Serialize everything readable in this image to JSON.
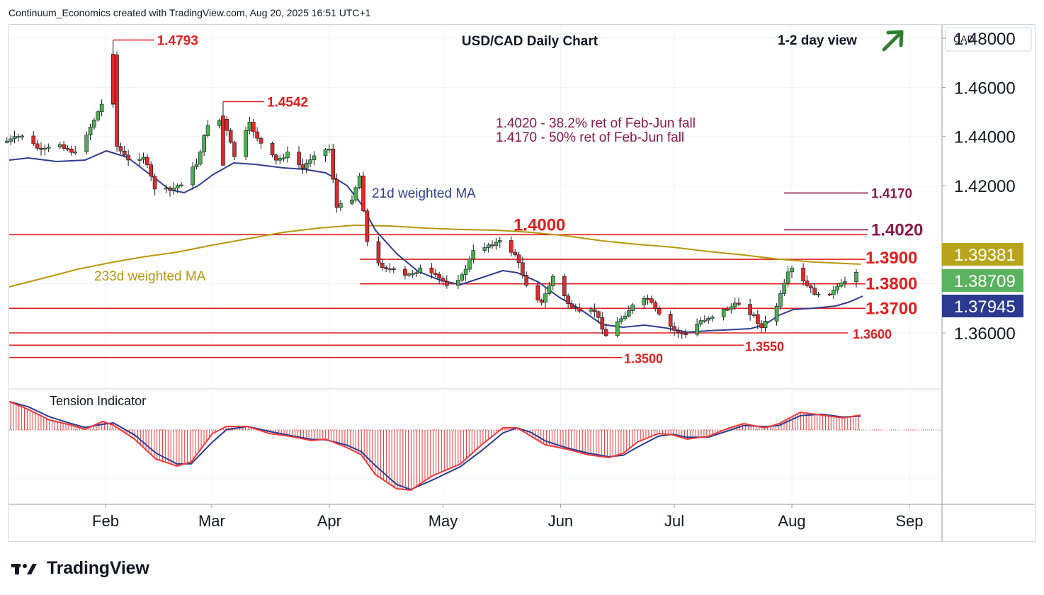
{
  "attribution": "Continuum_Economics created with TradingView.com, Aug 20, 2025 16:51 UTC+1",
  "brand": {
    "name": "TradingView",
    "icon": "tradingview-logo-icon"
  },
  "chart_data": {
    "type": "candlestick",
    "title": "USD/CAD Daily Chart",
    "view_label": "1-2 day view",
    "view_direction": "up",
    "view_icon": "arrow-up-right-icon",
    "currency_label": "CAD",
    "y_range": [
      1.3375,
      1.4855
    ],
    "y_ticks": [
      "1.48000",
      "1.46000",
      "1.44000",
      "1.42000",
      "1.36000"
    ],
    "x_ticks": [
      {
        "label": "Feb",
        "date": "2025-02-01"
      },
      {
        "label": "Mar",
        "date": "2025-03-01"
      },
      {
        "label": "Apr",
        "date": "2025-04-01"
      },
      {
        "label": "May",
        "date": "2025-05-01"
      },
      {
        "label": "Jun",
        "date": "2025-06-01"
      },
      {
        "label": "Jul",
        "date": "2025-07-01"
      },
      {
        "label": "Aug",
        "date": "2025-08-01"
      },
      {
        "label": "Sep",
        "date": "2025-09-01"
      }
    ],
    "price_badges": [
      {
        "label": "1.39381",
        "bg": "#b8a41c",
        "fg": "#ffffff"
      },
      {
        "label": "1.38709",
        "bg": "#5bb25f",
        "fg": "#ffffff"
      },
      {
        "label": "1.37945",
        "bg": "#2b3a8f",
        "fg": "#ffffff"
      }
    ],
    "levels": [
      {
        "label": "1.3900",
        "value": 1.39,
        "size": "large"
      },
      {
        "label": "1.3800",
        "value": 1.38,
        "size": "large"
      },
      {
        "label": "1.3700",
        "value": 1.37,
        "size": "large"
      },
      {
        "label": "1.3600",
        "value": 1.36,
        "size": "small"
      },
      {
        "label": "1.3550",
        "value": 1.355,
        "size": "small"
      },
      {
        "label": "1.3500",
        "value": 1.35,
        "size": "small"
      },
      {
        "label": "1.4000",
        "value": 1.4,
        "size": "large"
      }
    ],
    "retracement_levels": [
      {
        "label": "1.4170",
        "value": 1.417
      },
      {
        "label": "1.4020",
        "value": 1.402
      }
    ],
    "notes": [
      "1.4020 - 38.2% ret of Feb-Jun fall",
      "1.4170 - 50% ret of Feb-Jun fall"
    ],
    "peaks": [
      {
        "label": "1.4793",
        "date": "2025-02-03",
        "value": 1.4793
      },
      {
        "label": "1.4542",
        "date": "2025-03-04",
        "value": 1.4542
      }
    ],
    "ma_labels": {
      "short": "21d weighted MA",
      "long": "233d weighted MA"
    },
    "ma_colors": {
      "short": "#2f3e8f",
      "long": "#b8960c"
    },
    "candle_colors": {
      "up": "#4caf50",
      "down": "#e02a2a"
    },
    "indicator": {
      "title": "Tension Indicator",
      "line_colors": [
        "#2b3a8f",
        "#ef3b3b"
      ],
      "hist_color": "#ef3b3b"
    },
    "close_path": [
      [
        "2025-01-06",
        1.438
      ],
      [
        "2025-01-10",
        1.4405
      ],
      [
        "2025-01-15",
        1.434
      ],
      [
        "2025-01-20",
        1.437
      ],
      [
        "2025-01-24",
        1.433
      ],
      [
        "2025-01-28",
        1.444
      ],
      [
        "2025-01-31",
        1.453
      ],
      [
        "2025-02-03",
        1.474
      ],
      [
        "2025-02-04",
        1.436
      ],
      [
        "2025-02-07",
        1.43
      ],
      [
        "2025-02-11",
        1.432
      ],
      [
        "2025-02-14",
        1.419
      ],
      [
        "2025-02-18",
        1.418
      ],
      [
        "2025-02-21",
        1.421
      ],
      [
        "2025-02-25",
        1.429
      ],
      [
        "2025-02-28",
        1.445
      ],
      [
        "2025-03-04",
        1.447
      ],
      [
        "2025-03-07",
        1.432
      ],
      [
        "2025-03-11",
        1.445
      ],
      [
        "2025-03-14",
        1.437
      ],
      [
        "2025-03-18",
        1.43
      ],
      [
        "2025-03-21",
        1.433
      ],
      [
        "2025-03-25",
        1.427
      ],
      [
        "2025-03-28",
        1.433
      ],
      [
        "2025-04-01",
        1.435
      ],
      [
        "2025-04-03",
        1.411
      ],
      [
        "2025-04-07",
        1.415
      ],
      [
        "2025-04-09",
        1.424
      ],
      [
        "2025-04-11",
        1.397
      ],
      [
        "2025-04-14",
        1.388
      ],
      [
        "2025-04-17",
        1.386
      ],
      [
        "2025-04-21",
        1.383
      ],
      [
        "2025-04-25",
        1.386
      ],
      [
        "2025-04-29",
        1.383
      ],
      [
        "2025-05-02",
        1.38
      ],
      [
        "2025-05-06",
        1.383
      ],
      [
        "2025-05-09",
        1.393
      ],
      [
        "2025-05-13",
        1.396
      ],
      [
        "2025-05-16",
        1.397
      ],
      [
        "2025-05-20",
        1.392
      ],
      [
        "2025-05-23",
        1.38
      ],
      [
        "2025-05-27",
        1.372
      ],
      [
        "2025-05-30",
        1.383
      ],
      [
        "2025-06-03",
        1.372
      ],
      [
        "2025-06-06",
        1.368
      ],
      [
        "2025-06-10",
        1.369
      ],
      [
        "2025-06-13",
        1.359
      ],
      [
        "2025-06-17",
        1.366
      ],
      [
        "2025-06-20",
        1.371
      ],
      [
        "2025-06-24",
        1.374
      ],
      [
        "2025-06-27",
        1.367
      ],
      [
        "2025-07-01",
        1.361
      ],
      [
        "2025-07-04",
        1.359
      ],
      [
        "2025-07-08",
        1.365
      ],
      [
        "2025-07-11",
        1.367
      ],
      [
        "2025-07-15",
        1.37
      ],
      [
        "2025-07-18",
        1.372
      ],
      [
        "2025-07-22",
        1.367
      ],
      [
        "2025-07-24",
        1.362
      ],
      [
        "2025-07-28",
        1.371
      ],
      [
        "2025-07-31",
        1.384
      ],
      [
        "2025-08-01",
        1.386
      ],
      [
        "2025-08-05",
        1.379
      ],
      [
        "2025-08-08",
        1.375
      ],
      [
        "2025-08-12",
        1.377
      ],
      [
        "2025-08-15",
        1.381
      ],
      [
        "2025-08-19",
        1.387
      ]
    ]
  }
}
